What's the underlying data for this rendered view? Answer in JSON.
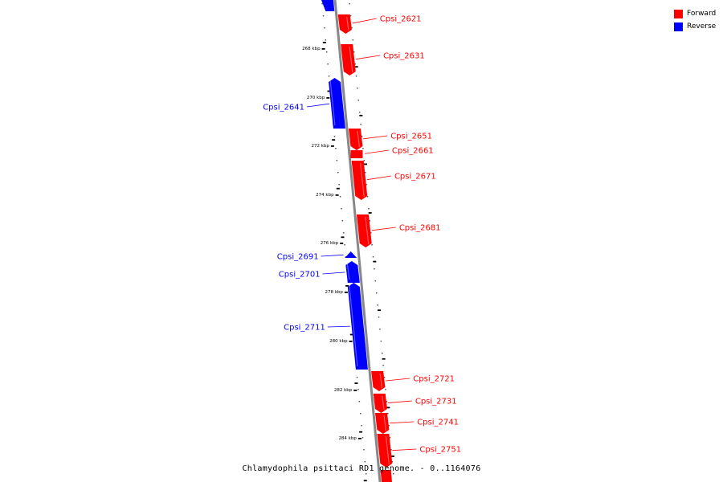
{
  "colors": {
    "forward": "#ff0000",
    "reverse": "#0000ff",
    "axis": "#888888"
  },
  "legend": [
    {
      "label": "Forward",
      "color": "#ff0000"
    },
    {
      "label": "Reverse",
      "color": "#0000ff"
    }
  ],
  "caption": "Chlamydophila psittaci RD1 genome. - 0..1164076",
  "scale_labels": [
    "268 kbp",
    "270 kbp",
    "272 kbp",
    "274 kbp",
    "276 kbp",
    "278 kbp",
    "280 kbp",
    "282 kbp",
    "284 kbp"
  ],
  "genes": [
    {
      "name": "Cpsi_2621",
      "strand": "forward"
    },
    {
      "name": "Cpsi_2631",
      "strand": "forward"
    },
    {
      "name": "Cpsi_2641",
      "strand": "reverse"
    },
    {
      "name": "Cpsi_2651",
      "strand": "forward"
    },
    {
      "name": "Cpsi_2661",
      "strand": "forward"
    },
    {
      "name": "Cpsi_2671",
      "strand": "forward"
    },
    {
      "name": "Cpsi_2681",
      "strand": "forward"
    },
    {
      "name": "Cpsi_2691",
      "strand": "reverse"
    },
    {
      "name": "Cpsi_2701",
      "strand": "reverse"
    },
    {
      "name": "Cpsi_2711",
      "strand": "reverse"
    },
    {
      "name": "Cpsi_2721",
      "strand": "forward"
    },
    {
      "name": "Cpsi_2731",
      "strand": "forward"
    },
    {
      "name": "Cpsi_2741",
      "strand": "forward"
    },
    {
      "name": "Cpsi_2751",
      "strand": "forward"
    }
  ]
}
